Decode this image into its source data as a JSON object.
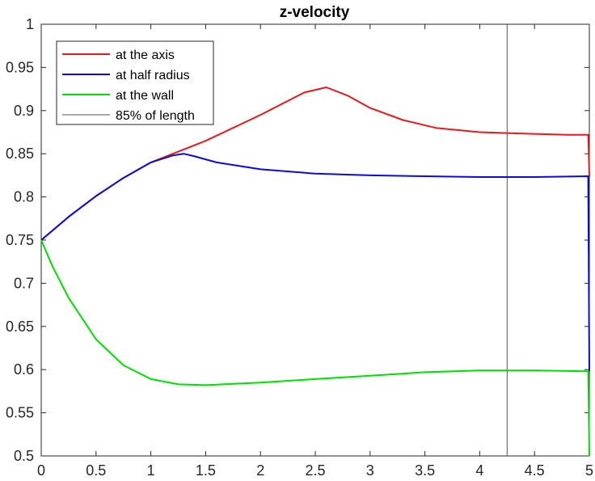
{
  "chart_data": {
    "type": "line",
    "title": "z-velocity",
    "xlabel": "",
    "ylabel": "",
    "xlim": [
      0,
      5
    ],
    "ylim": [
      0.5,
      1
    ],
    "xticks": [
      0,
      0.5,
      1,
      1.5,
      2,
      2.5,
      3,
      3.5,
      4,
      4.5,
      5
    ],
    "xtick_labels": [
      "0",
      "0.5",
      "1",
      "1.5",
      "2",
      "2.5",
      "3",
      "3.5",
      "4",
      "4.5",
      "5"
    ],
    "yticks": [
      0.5,
      0.55,
      0.6,
      0.65,
      0.7,
      0.75,
      0.8,
      0.85,
      0.9,
      0.95,
      1
    ],
    "ytick_labels": [
      "0.5",
      "0.55",
      "0.6",
      "0.65",
      "0.7",
      "0.75",
      "0.8",
      "0.85",
      "0.9",
      "0.95",
      "1"
    ],
    "grid": false,
    "legend_position": "top-left",
    "series": [
      {
        "name": "at the axis",
        "color": "#e41a1c",
        "x": [
          0,
          0.25,
          0.5,
          0.75,
          1.0,
          1.2,
          1.5,
          2.0,
          2.4,
          2.6,
          2.8,
          3.0,
          3.3,
          3.6,
          4.0,
          4.25,
          4.5,
          4.8,
          4.99,
          5.0
        ],
        "y": [
          0.75,
          0.777,
          0.801,
          0.822,
          0.84,
          0.85,
          0.865,
          0.895,
          0.921,
          0.927,
          0.917,
          0.903,
          0.889,
          0.88,
          0.875,
          0.874,
          0.873,
          0.872,
          0.872,
          0.824
        ]
      },
      {
        "name": "at half radius",
        "color": "#0a0adc",
        "x": [
          0,
          0.25,
          0.5,
          0.75,
          1.0,
          1.2,
          1.3,
          1.4,
          1.6,
          2.0,
          2.5,
          3.0,
          3.5,
          4.0,
          4.5,
          4.99,
          5.0
        ],
        "y": [
          0.75,
          0.777,
          0.801,
          0.822,
          0.84,
          0.848,
          0.85,
          0.847,
          0.84,
          0.832,
          0.827,
          0.825,
          0.824,
          0.823,
          0.823,
          0.824,
          0.598
        ]
      },
      {
        "name": "at the wall",
        "color": "#00e000",
        "x": [
          0,
          0.1,
          0.25,
          0.5,
          0.75,
          1.0,
          1.25,
          1.5,
          2.0,
          2.5,
          3.0,
          3.5,
          4.0,
          4.5,
          4.99,
          5.0
        ],
        "y": [
          0.75,
          0.72,
          0.683,
          0.635,
          0.605,
          0.589,
          0.583,
          0.582,
          0.585,
          0.589,
          0.593,
          0.597,
          0.599,
          0.599,
          0.598,
          0.5
        ]
      }
    ],
    "reference_lines": [
      {
        "name": "85% of length",
        "orientation": "vertical",
        "x": 4.25,
        "color": "#555555"
      }
    ]
  }
}
